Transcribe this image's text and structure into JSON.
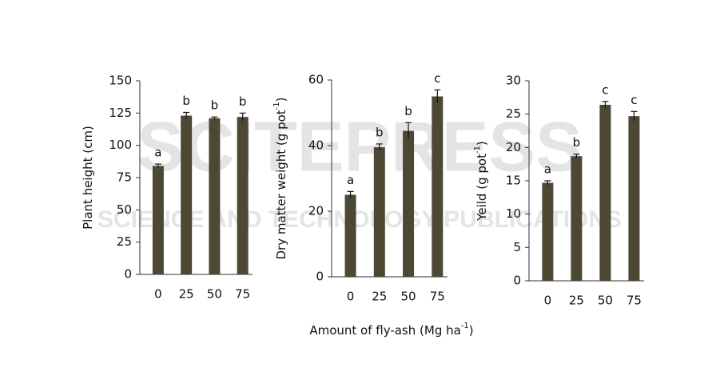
{
  "watermark": {
    "brand": "SCITEPRESS",
    "tagline": "SCIENCE AND TECHNOLOGY PUBLICATIONS"
  },
  "xlabel": {
    "text": "Amount of fly-ash (Mg ha",
    "sup": "-1",
    "end": ")"
  },
  "chart_data": [
    {
      "type": "bar",
      "ylabel": {
        "text": "Plant height (cm)"
      },
      "categories": [
        "0",
        "25",
        "50",
        "75"
      ],
      "values": [
        84,
        123,
        121,
        122
      ],
      "errors": [
        1.5,
        2.5,
        1,
        3
      ],
      "letters": [
        "a",
        "b",
        "b",
        "b"
      ],
      "color": "#4d4833",
      "ylim": [
        0,
        150
      ],
      "yticks": [
        0,
        25,
        50,
        75,
        100,
        125,
        150
      ]
    },
    {
      "type": "bar",
      "ylabel": {
        "text": "Dry matter weight (g pot",
        "sup": "-1",
        "end": ")"
      },
      "categories": [
        "0",
        "25",
        "50",
        "75"
      ],
      "values": [
        25,
        39.5,
        44.5,
        55
      ],
      "errors": [
        1,
        1,
        2.5,
        2
      ],
      "letters": [
        "a",
        "b",
        "b",
        "c"
      ],
      "color": "#4d4833",
      "ylim": [
        0,
        60
      ],
      "yticks": [
        0,
        20,
        40,
        60
      ]
    },
    {
      "type": "bar",
      "ylabel": {
        "text": "Yeild  (g pot",
        "sup": "-1",
        "end": ")"
      },
      "categories": [
        "0",
        "25",
        "50",
        "75"
      ],
      "values": [
        14.7,
        18.7,
        26.4,
        24.7
      ],
      "errors": [
        0.3,
        0.3,
        0.5,
        0.7
      ],
      "letters": [
        "a",
        "b",
        "c",
        "c"
      ],
      "color": "#4d4833",
      "ylim": [
        0,
        30
      ],
      "yticks": [
        0,
        5,
        10,
        15,
        20,
        25,
        30
      ]
    }
  ]
}
